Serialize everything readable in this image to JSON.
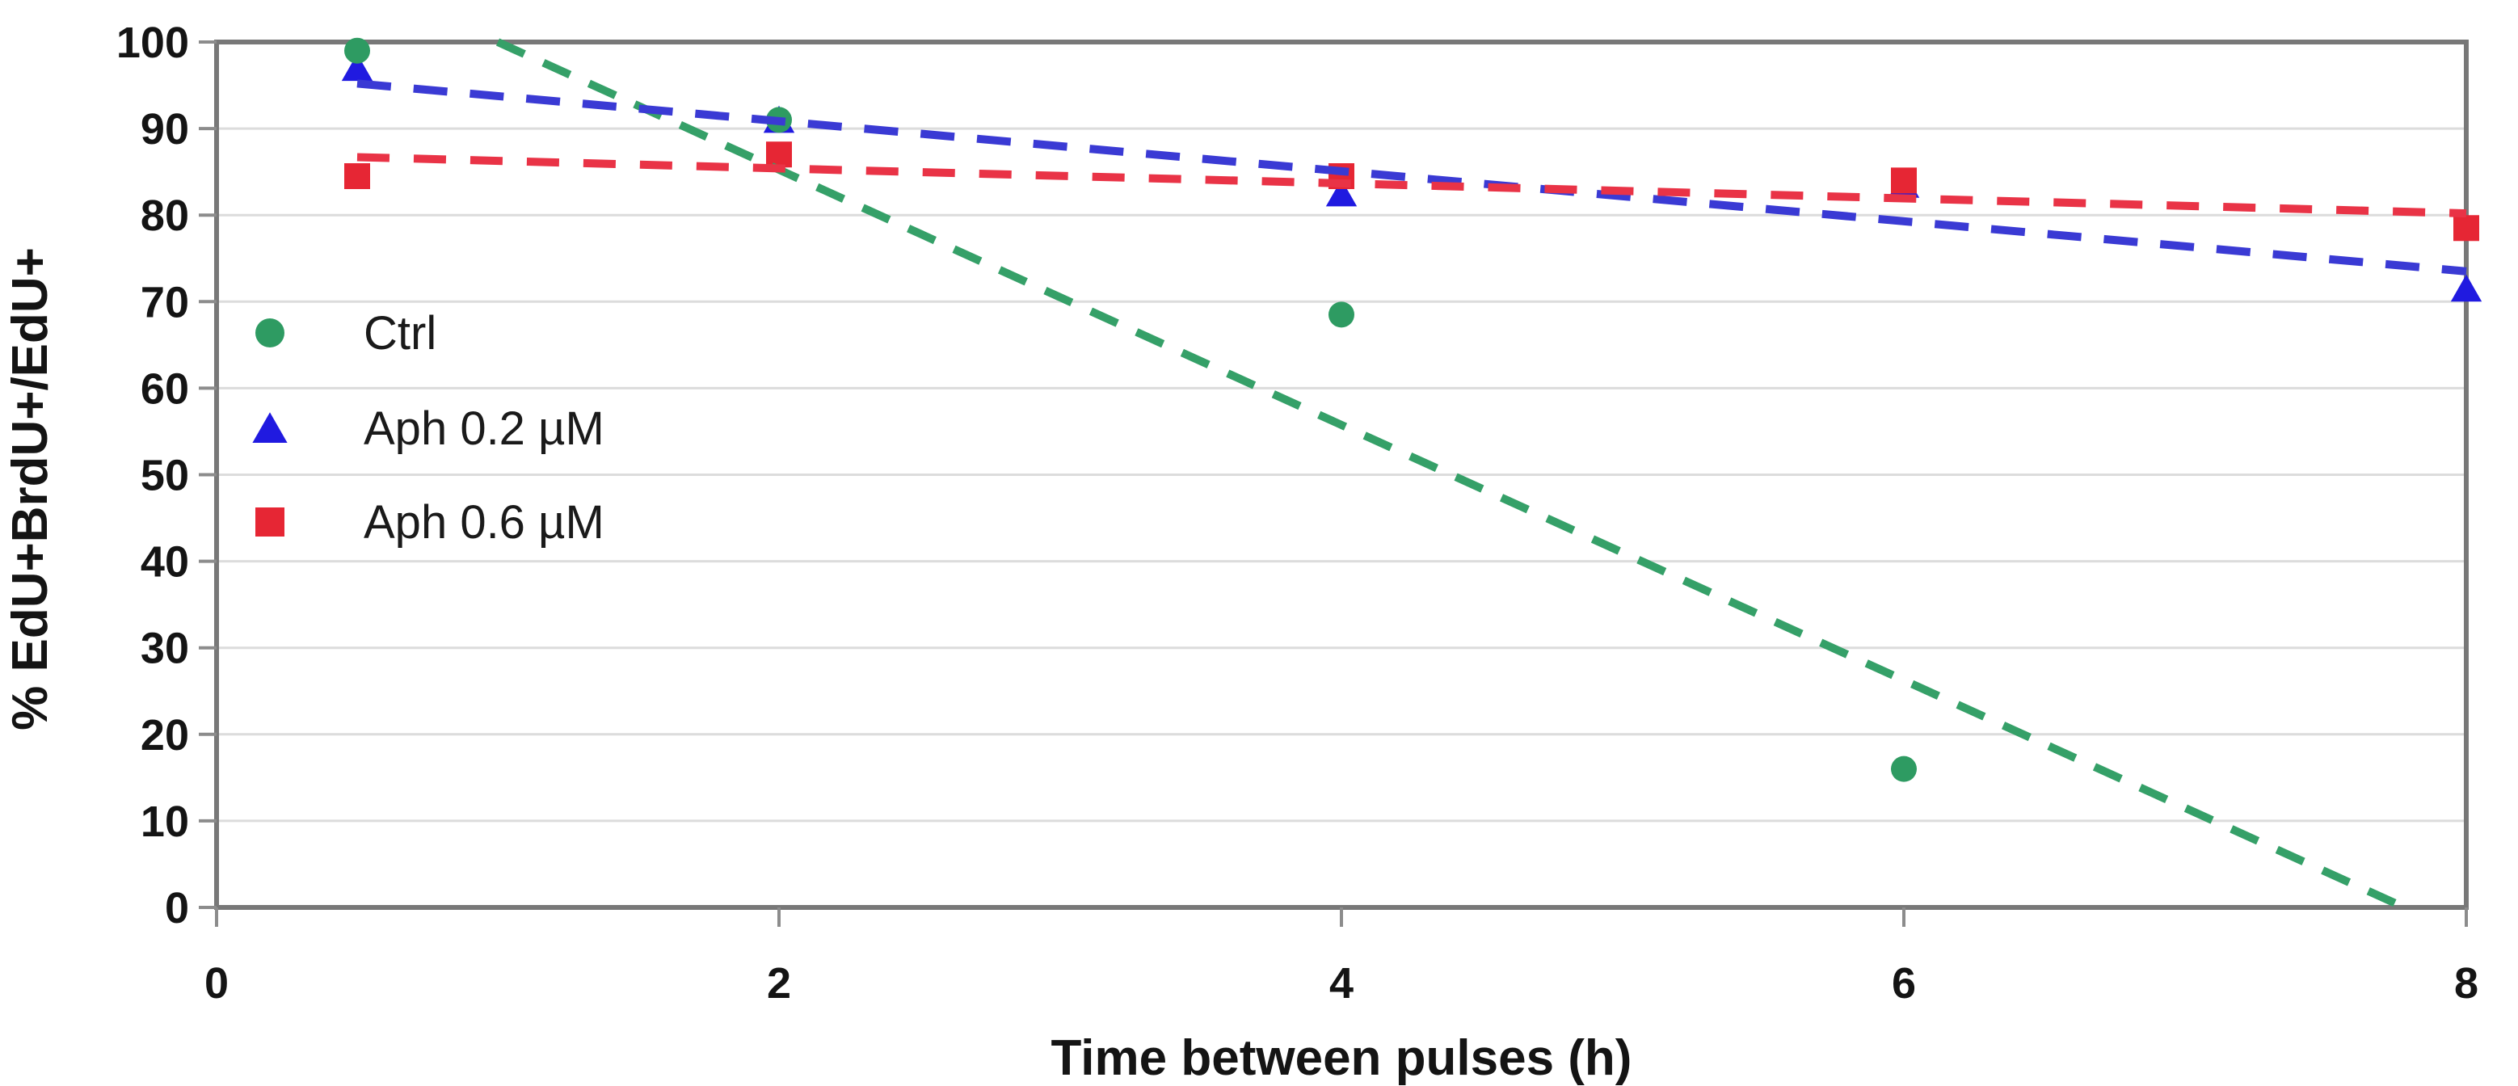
{
  "chart_data": {
    "type": "scatter",
    "title": "",
    "xlabel": "Time between pulses (h)",
    "ylabel": "% EdU+BrdU+/EdU+",
    "xlim": [
      0,
      8
    ],
    "ylim": [
      0,
      100
    ],
    "xticks": [
      0,
      2,
      4,
      6,
      8
    ],
    "yticks": [
      0,
      10,
      20,
      30,
      40,
      50,
      60,
      70,
      80,
      90,
      100
    ],
    "grid": "horizontal-only",
    "legend_position": "inside-upper-left",
    "colors": {
      "background": "#ffffff",
      "plot_border": "#787878",
      "gridline": "#dcdcdc",
      "tick": "#8c8c8c",
      "text": "#141414"
    },
    "series": [
      {
        "name": "Ctrl",
        "marker": "circle",
        "color": "#2e9b62",
        "trend_color": "#35a068",
        "points": [
          [
            0.5,
            99
          ],
          [
            2,
            91
          ],
          [
            4,
            68.5
          ],
          [
            6,
            16
          ]
        ],
        "trendline": {
          "x1": 1.0,
          "y1": 100,
          "x2": 7.78,
          "y2": 0
        },
        "dash": "36 26"
      },
      {
        "name": "Aph 0.2 µM",
        "marker": "triangle",
        "color": "#201ae0",
        "trend_color": "#3a3ad4",
        "points": [
          [
            0.5,
            97
          ],
          [
            2,
            91
          ],
          [
            4,
            82.5
          ],
          [
            6,
            83.5
          ],
          [
            8,
            71.5
          ]
        ],
        "trendline": {
          "x1": 0.5,
          "y1": 95.2,
          "x2": 8,
          "y2": 73.5
        },
        "dash": "42 28"
      },
      {
        "name": "Aph 0.6 µM",
        "marker": "square",
        "color": "#e62634",
        "trend_color": "#e93346",
        "points": [
          [
            0.5,
            84.5
          ],
          [
            2,
            87
          ],
          [
            4,
            84.5
          ],
          [
            6,
            84
          ],
          [
            8,
            78.5
          ]
        ],
        "trendline": {
          "x1": 0.5,
          "y1": 86.7,
          "x2": 8,
          "y2": 80.2
        },
        "dash": "40 30"
      }
    ]
  }
}
